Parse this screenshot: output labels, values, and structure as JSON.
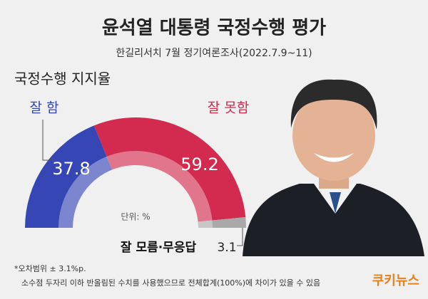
{
  "chart_data": {
    "type": "pie",
    "half": true,
    "title": "윤석열 대통령 국정수행 평가",
    "subtitle": "한길리서치 7월 정기여론조사(2022.7.9~11)",
    "chart_label": "국정수행 지지율",
    "unit": "단위: %",
    "categories": [
      "잘 함",
      "잘 못함",
      "잘 모름·무응답"
    ],
    "values": [
      37.8,
      59.2,
      3.1
    ],
    "colors": [
      "#3646b5",
      "#d22b4f",
      "#a9a9a9"
    ],
    "notes": [
      "*오차범위 ± 3.1%p.",
      "소수점 두자리 이하 반올림된 수치를 사용했으므로 전체합계(100%)에 차이가 있을 수 있음"
    ],
    "logo": "쿠키뉴스"
  }
}
